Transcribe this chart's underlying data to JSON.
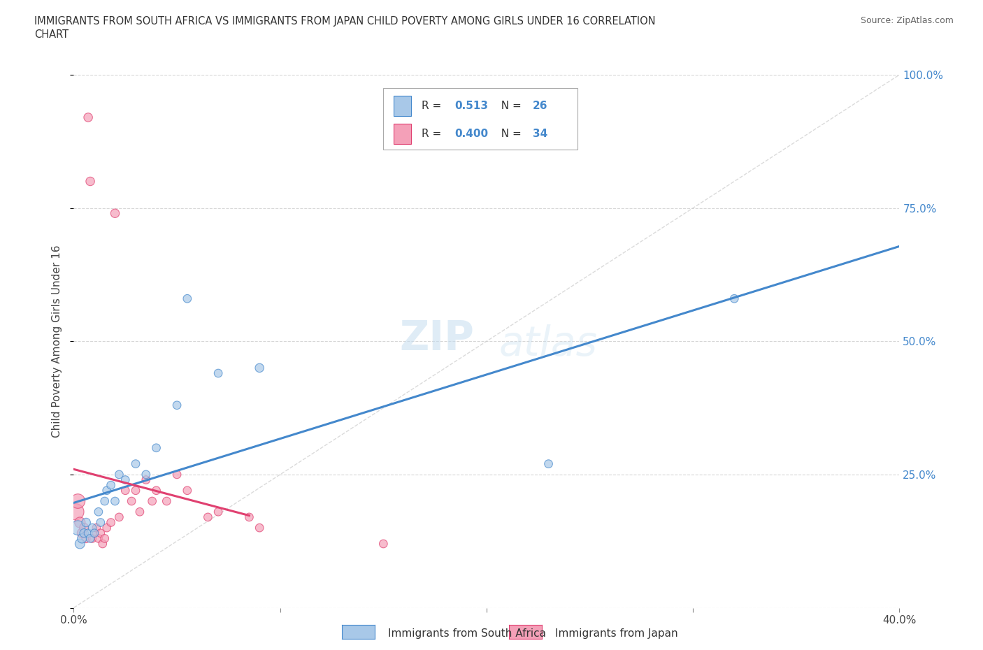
{
  "title_line1": "IMMIGRANTS FROM SOUTH AFRICA VS IMMIGRANTS FROM JAPAN CHILD POVERTY AMONG GIRLS UNDER 16 CORRELATION",
  "title_line2": "CHART",
  "source": "Source: ZipAtlas.com",
  "ylabel_label": "Child Poverty Among Girls Under 16",
  "legend_bottom": [
    "Immigrants from South Africa",
    "Immigrants from Japan"
  ],
  "R_blue": 0.513,
  "N_blue": 26,
  "R_pink": 0.4,
  "N_pink": 34,
  "color_blue": "#a8c8e8",
  "color_pink": "#f4a0b8",
  "color_blue_line": "#4488cc",
  "color_pink_line": "#e04070",
  "color_diag": "#cccccc",
  "watermark_zip": "ZIP",
  "watermark_atlas": "atlas",
  "blue_scatter_x": [
    0.002,
    0.003,
    0.004,
    0.005,
    0.006,
    0.007,
    0.008,
    0.009,
    0.01,
    0.012,
    0.013,
    0.015,
    0.016,
    0.018,
    0.02,
    0.022,
    0.025,
    0.03,
    0.035,
    0.04,
    0.05,
    0.055,
    0.07,
    0.09,
    0.23,
    0.32
  ],
  "blue_scatter_y": [
    0.15,
    0.12,
    0.13,
    0.14,
    0.16,
    0.14,
    0.13,
    0.15,
    0.14,
    0.18,
    0.16,
    0.2,
    0.22,
    0.23,
    0.2,
    0.25,
    0.24,
    0.27,
    0.25,
    0.3,
    0.38,
    0.58,
    0.44,
    0.45,
    0.27,
    0.58
  ],
  "blue_scatter_size": [
    220,
    100,
    90,
    80,
    80,
    70,
    70,
    70,
    70,
    70,
    70,
    70,
    70,
    70,
    70,
    70,
    70,
    70,
    70,
    70,
    70,
    70,
    70,
    80,
    70,
    70
  ],
  "pink_scatter_x": [
    0.001,
    0.002,
    0.003,
    0.004,
    0.005,
    0.006,
    0.007,
    0.008,
    0.009,
    0.01,
    0.011,
    0.012,
    0.013,
    0.014,
    0.015,
    0.016,
    0.018,
    0.02,
    0.022,
    0.025,
    0.028,
    0.03,
    0.032,
    0.035,
    0.038,
    0.04,
    0.045,
    0.05,
    0.055,
    0.065,
    0.07,
    0.085,
    0.09,
    0.15
  ],
  "pink_scatter_y": [
    0.18,
    0.2,
    0.16,
    0.14,
    0.15,
    0.13,
    0.92,
    0.8,
    0.13,
    0.14,
    0.15,
    0.13,
    0.14,
    0.12,
    0.13,
    0.15,
    0.16,
    0.74,
    0.17,
    0.22,
    0.2,
    0.22,
    0.18,
    0.24,
    0.2,
    0.22,
    0.2,
    0.25,
    0.22,
    0.17,
    0.18,
    0.17,
    0.15,
    0.12
  ],
  "pink_scatter_size": [
    280,
    220,
    120,
    100,
    90,
    80,
    80,
    80,
    70,
    70,
    70,
    70,
    70,
    70,
    70,
    70,
    70,
    80,
    70,
    70,
    70,
    70,
    70,
    70,
    70,
    70,
    70,
    70,
    70,
    70,
    70,
    70,
    70,
    70
  ]
}
